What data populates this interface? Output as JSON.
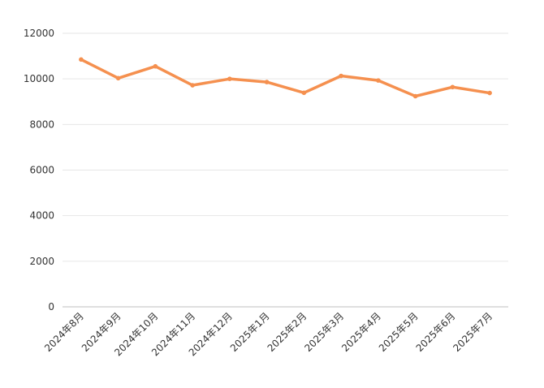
{
  "chart_data": {
    "type": "line",
    "title": "",
    "xlabel": "",
    "ylabel": "",
    "categories": [
      "2024年8月",
      "2024年9月",
      "2024年10月",
      "2024年11月",
      "2024年12月",
      "2025年1月",
      "2025年2月",
      "2025年3月",
      "2025年4月",
      "2025年5月",
      "2025年6月",
      "2025年7月"
    ],
    "series": [
      {
        "values": [
          10850,
          10030,
          10550,
          9720,
          10000,
          9860,
          9390,
          10130,
          9930,
          9240,
          9640,
          9380
        ]
      }
    ],
    "ylim": [
      0,
      12000
    ],
    "yticks": [
      0,
      2000,
      4000,
      6000,
      8000,
      10000,
      12000
    ],
    "grid": true,
    "legend": "none",
    "colors": {
      "series": "#f5904f",
      "grid": "#e6e6e6",
      "axis": "#bfbfbf",
      "text": "#333333"
    }
  }
}
